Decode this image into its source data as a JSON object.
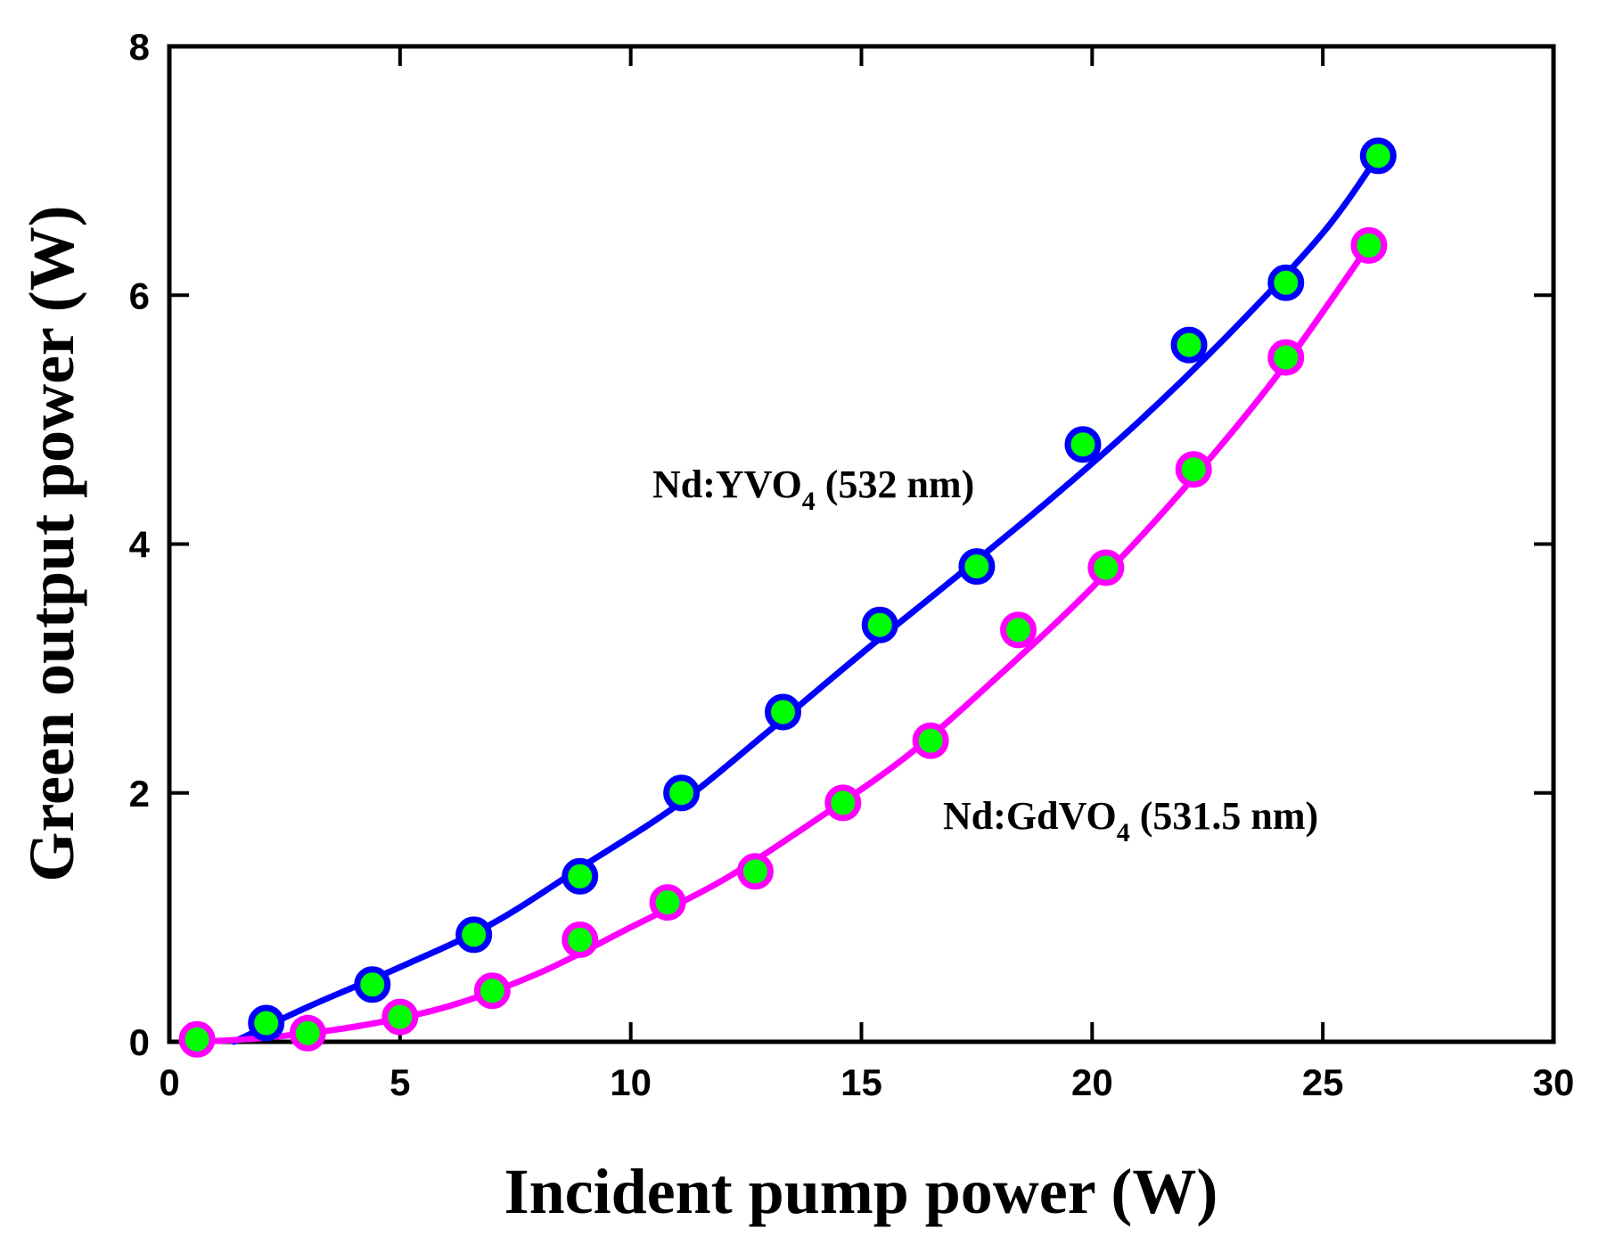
{
  "chart_data": {
    "type": "scatter",
    "title": "",
    "xlabel": "Incident pump power (W)",
    "ylabel": "Green output power (W)",
    "xlim": [
      0,
      30
    ],
    "ylim": [
      0,
      8
    ],
    "xticks": [
      0,
      5,
      10,
      15,
      20,
      25,
      30
    ],
    "yticks": [
      0,
      2,
      4,
      6,
      8
    ],
    "grid": false,
    "marker_fill": "#00ff00",
    "series": [
      {
        "name": "Nd:YVO4 (532 nm)",
        "color": "#0000ff",
        "x": [
          2.1,
          4.4,
          6.6,
          8.9,
          11.1,
          13.3,
          15.4,
          17.5,
          19.8,
          22.1,
          24.2,
          26.2
        ],
        "y": [
          0.15,
          0.46,
          0.86,
          1.33,
          2.0,
          2.65,
          3.35,
          3.82,
          4.8,
          5.6,
          6.1,
          7.12
        ],
        "fit_x": [
          1.4,
          3,
          5,
          7,
          9,
          11,
          13,
          15,
          17,
          19,
          21,
          23,
          25,
          26.2
        ],
        "fit_y": [
          0.0,
          0.28,
          0.6,
          0.95,
          1.42,
          1.9,
          2.5,
          3.12,
          3.72,
          4.33,
          4.98,
          5.7,
          6.5,
          7.12
        ]
      },
      {
        "name": "Nd:GdVO4 (531.5 nm)",
        "color": "#ff00ff",
        "x": [
          0.6,
          3.0,
          5.0,
          7.0,
          8.9,
          10.8,
          12.7,
          14.6,
          16.5,
          18.4,
          20.3,
          22.2,
          24.2,
          26.0
        ],
        "y": [
          0.02,
          0.07,
          0.2,
          0.41,
          0.82,
          1.12,
          1.37,
          1.92,
          2.42,
          3.31,
          3.81,
          4.6,
          5.5,
          6.4
        ],
        "fit_x": [
          0.6,
          2,
          4,
          6,
          8,
          10,
          12,
          14,
          16,
          18,
          20,
          22,
          24,
          26
        ],
        "fit_y": [
          0.0,
          0.03,
          0.12,
          0.28,
          0.55,
          0.92,
          1.3,
          1.78,
          2.3,
          2.95,
          3.65,
          4.45,
          5.35,
          6.4
        ]
      }
    ],
    "annotations": [
      {
        "main": "Nd:YVO",
        "sub": "4",
        "tail": " (532 nm)"
      },
      {
        "main": "Nd:GdVO",
        "sub": "4",
        "tail": " (531.5 nm)"
      }
    ]
  }
}
